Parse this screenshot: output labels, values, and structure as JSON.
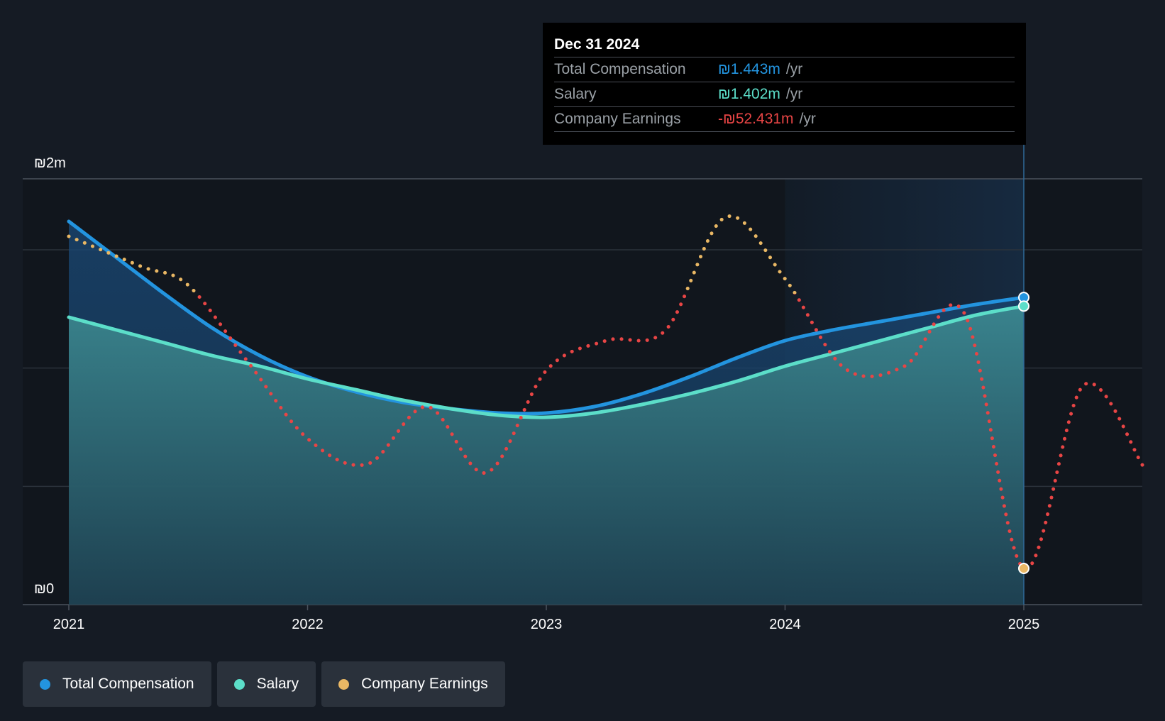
{
  "colors": {
    "background": "#151b24",
    "total_compensation": "#2394df",
    "salary": "#5cdec9",
    "earnings_positive": "#e9b764",
    "earnings_negative": "#e84545"
  },
  "tooltip": {
    "date": "Dec 31 2024",
    "rows": [
      {
        "label": "Total Compensation",
        "value": "₪1.443m",
        "unit": "/yr",
        "color": "#2394df"
      },
      {
        "label": "Salary",
        "value": "₪1.402m",
        "unit": "/yr",
        "color": "#5cdec9"
      },
      {
        "label": "Company Earnings",
        "value": "-₪52.431m",
        "unit": "/yr",
        "color": "#e84545"
      }
    ]
  },
  "legend": [
    {
      "label": "Total Compensation",
      "color": "#2394df"
    },
    {
      "label": "Salary",
      "color": "#5cdec9"
    },
    {
      "label": "Company Earnings",
      "color": "#e9b764"
    }
  ],
  "chart_data": {
    "type": "line",
    "title": "",
    "xlabel": "",
    "ylabel": "",
    "x_ticks": [
      "2021",
      "2022",
      "2023",
      "2024",
      "2025"
    ],
    "x_tick_values": [
      2021,
      2022,
      2023,
      2024,
      2025
    ],
    "xlim": [
      2020.81,
      2025.5
    ],
    "y_axis_labels": [
      "₪0",
      "₪2m"
    ],
    "ylim": [
      0,
      2.0
    ],
    "highlight_range": [
      2024.0,
      2025.0
    ],
    "hover_x": 2025.0,
    "series": [
      {
        "name": "Total Compensation",
        "unit": "₪m",
        "x": [
          2021.0,
          2021.2,
          2021.4,
          2021.6,
          2021.8,
          2022.0,
          2022.2,
          2022.4,
          2022.6,
          2022.8,
          2023.0,
          2023.2,
          2023.4,
          2023.6,
          2023.8,
          2024.0,
          2024.2,
          2024.4,
          2024.6,
          2024.8,
          2025.0
        ],
        "values": [
          1.8,
          1.63,
          1.46,
          1.3,
          1.17,
          1.07,
          1.0,
          0.95,
          0.92,
          0.9,
          0.9,
          0.93,
          0.99,
          1.07,
          1.16,
          1.24,
          1.29,
          1.33,
          1.37,
          1.41,
          1.443
        ]
      },
      {
        "name": "Salary",
        "unit": "₪m",
        "x": [
          2021.0,
          2021.2,
          2021.4,
          2021.6,
          2021.8,
          2022.0,
          2022.2,
          2022.4,
          2022.6,
          2022.8,
          2023.0,
          2023.2,
          2023.4,
          2023.6,
          2023.8,
          2024.0,
          2024.2,
          2024.4,
          2024.6,
          2024.8,
          2025.0
        ],
        "values": [
          1.35,
          1.29,
          1.23,
          1.17,
          1.12,
          1.06,
          1.01,
          0.96,
          0.92,
          0.89,
          0.88,
          0.9,
          0.94,
          0.99,
          1.05,
          1.12,
          1.18,
          1.24,
          1.3,
          1.36,
          1.402
        ]
      },
      {
        "name": "Company Earnings",
        "scale": "relative (not on ₪ axis)",
        "current_value": "-₪52.431m",
        "x": [
          2021.0,
          2021.3,
          2021.5,
          2021.75,
          2022.0,
          2022.25,
          2022.5,
          2022.75,
          2023.0,
          2023.25,
          2023.5,
          2023.75,
          2024.0,
          2024.25,
          2024.5,
          2024.75,
          2025.0,
          2025.25,
          2025.5
        ],
        "values": [
          1.73,
          1.59,
          1.5,
          1.14,
          0.78,
          0.66,
          0.93,
          0.62,
          1.1,
          1.24,
          1.29,
          1.82,
          1.53,
          1.11,
          1.12,
          1.37,
          0.17,
          1.03,
          0.65
        ]
      }
    ]
  }
}
